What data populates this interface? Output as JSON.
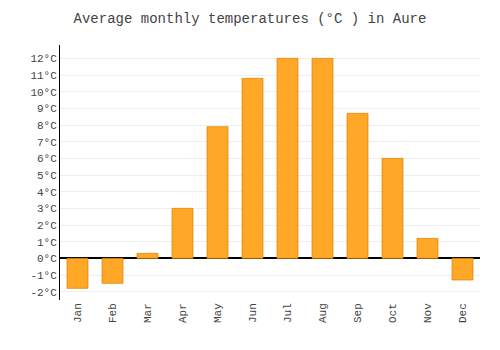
{
  "chart_data": {
    "type": "bar",
    "title": "Average monthly temperatures (°C ) in Aure",
    "categories": [
      "Jan",
      "Feb",
      "Mar",
      "Apr",
      "May",
      "Jun",
      "Jul",
      "Aug",
      "Sep",
      "Oct",
      "Nov",
      "Dec"
    ],
    "values": [
      -1.8,
      -1.5,
      0.3,
      3.0,
      7.9,
      10.8,
      12.0,
      12.0,
      8.7,
      6.0,
      1.2,
      -1.3
    ],
    "color": "#FFA726",
    "ylim": [
      -2.5,
      12.8
    ],
    "yticks": [
      {
        "value": -2,
        "label": "-2°C"
      },
      {
        "value": -1,
        "label": "-1°C"
      },
      {
        "value": 0,
        "label": "0°C"
      },
      {
        "value": 1,
        "label": "1°C"
      },
      {
        "value": 2,
        "label": "2°C"
      },
      {
        "value": 3,
        "label": "3°C"
      },
      {
        "value": 4,
        "label": "4°C"
      },
      {
        "value": 5,
        "label": "5°C"
      },
      {
        "value": 6,
        "label": "6°C"
      },
      {
        "value": 7,
        "label": "7°C"
      },
      {
        "value": 8,
        "label": "8°C"
      },
      {
        "value": 9,
        "label": "9°C"
      },
      {
        "value": 10,
        "label": "10°C"
      },
      {
        "value": 11,
        "label": "11°C"
      },
      {
        "value": 12,
        "label": "12°C"
      }
    ],
    "grid": true
  }
}
